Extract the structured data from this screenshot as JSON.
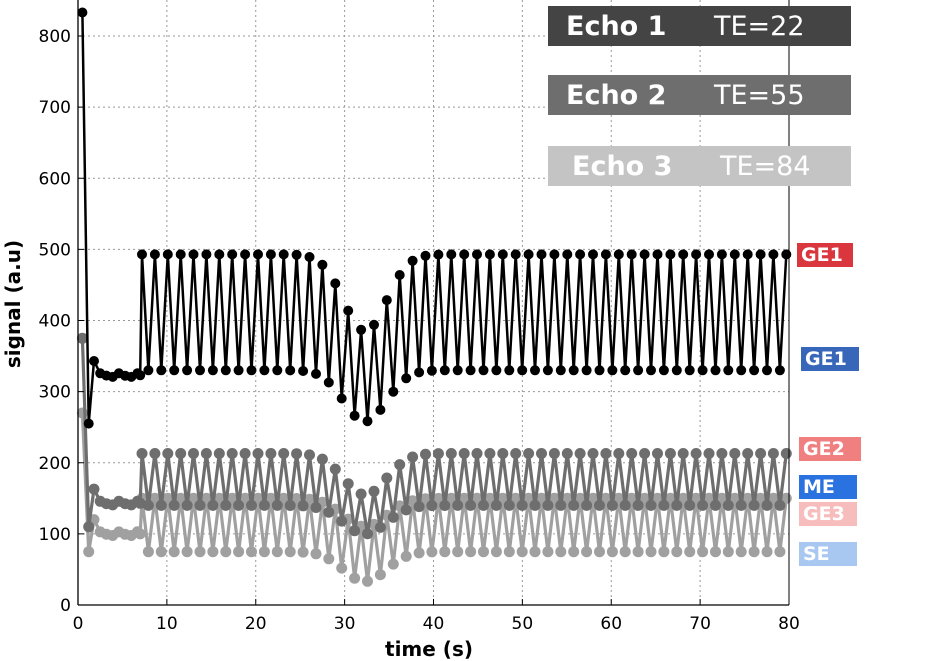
{
  "chart_data": {
    "type": "line",
    "xlabel": "time (s)",
    "ylabel": "signal (a.u)",
    "xlim": [
      0,
      80
    ],
    "ylim": [
      0,
      850
    ],
    "xticks": [
      0,
      10,
      20,
      30,
      40,
      50,
      60,
      70,
      80
    ],
    "yticks": [
      0,
      100,
      200,
      300,
      400,
      500,
      600,
      700,
      800
    ],
    "grid": true,
    "legend_boxes": [
      {
        "name": "Echo 1",
        "te": "TE=22",
        "color": "#444444"
      },
      {
        "name": "Echo 2",
        "te": "TE=55",
        "color": "#6e6e6e"
      },
      {
        "name": "Echo 3",
        "te": "TE=84",
        "color": "#c4c4c4"
      }
    ],
    "series_tags": [
      {
        "label": "GE1",
        "color": "#d9363e",
        "y": 485
      },
      {
        "label": "GE1",
        "color": "#3866b8",
        "y": 340
      },
      {
        "label": "GE2",
        "color": "#f08080",
        "y": 220
      },
      {
        "label": "ME",
        "color": "#2a72e0",
        "y": 170
      },
      {
        "label": "GE3",
        "color": "#f7bcbc",
        "y": 130
      },
      {
        "label": "SE",
        "color": "#a8c8f2",
        "y": 75
      }
    ],
    "series": [
      {
        "name": "Echo 1",
        "color": "#000000",
        "marker_color": "#000000",
        "baseline": {
          "initial": 833,
          "drop_to": 255,
          "pre": 323
        },
        "alternating": true,
        "start_time": 7.2,
        "period": 1.45,
        "high": 493,
        "low": 330,
        "dip_center": 32.3,
        "dip_width": 3.4,
        "dip_high": 385,
        "dip_low": 258,
        "end_time": 80
      },
      {
        "name": "Echo 2",
        "color": "#6e6e6e",
        "marker_color": "#6e6e6e",
        "baseline": {
          "initial": 375,
          "drop_to": 110,
          "pre": 143
        },
        "alternating": true,
        "start_time": 7.2,
        "period": 1.45,
        "high": 213,
        "low": 140,
        "dip_center": 32.3,
        "dip_width": 3.4,
        "dip_high": 155,
        "dip_low": 100,
        "end_time": 80
      },
      {
        "name": "Echo 3",
        "color": "#a0a0a0",
        "marker_color": "#a0a0a0",
        "baseline": {
          "initial": 270,
          "drop_to": 75,
          "pre": 100
        },
        "alternating": true,
        "start_time": 7.2,
        "period": 1.45,
        "high": 150,
        "low": 75,
        "dip_center": 32.3,
        "dip_width": 3.4,
        "dip_high": 110,
        "dip_low": 33,
        "end_time": 80
      }
    ]
  }
}
